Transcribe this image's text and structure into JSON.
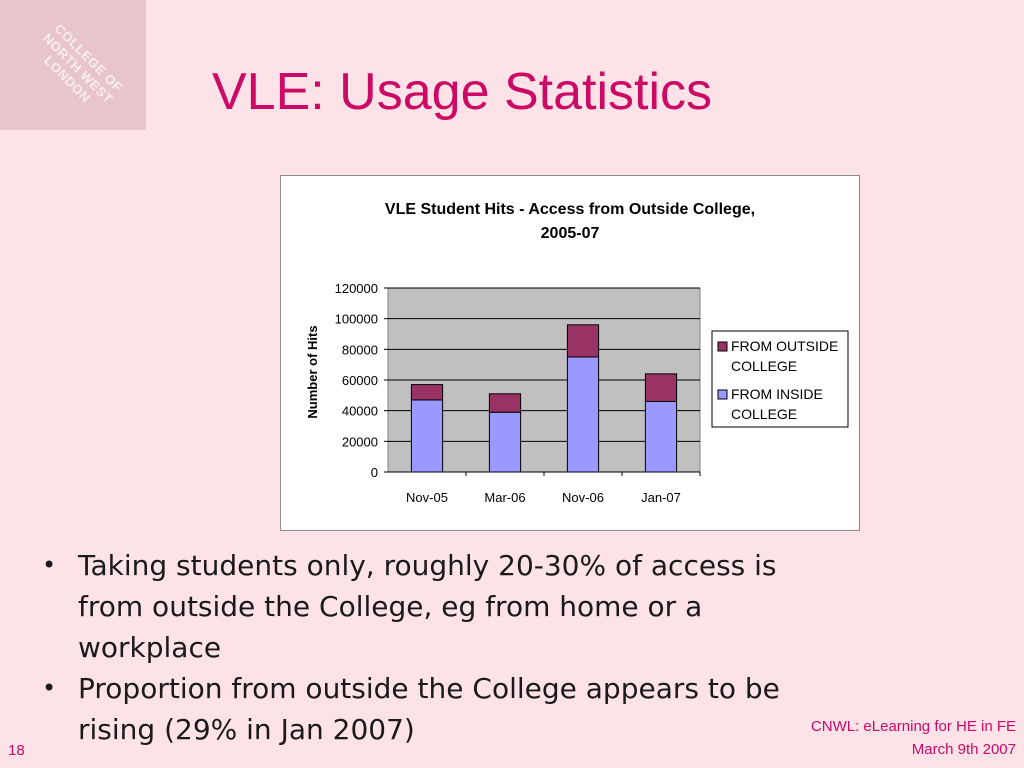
{
  "slide": {
    "title": "VLE: Usage Statistics",
    "logo_lines": [
      "COLLEGE OF",
      "NORTH WEST",
      "LONDON"
    ],
    "page_number": "18",
    "footer_line1": "CNWL: eLearning for HE in FE",
    "footer_line2": "March 9th 2007"
  },
  "bullets": [
    " Taking students only, roughly 20-30% of access is from outside the College, eg from home or a workplace",
    "Proportion  from outside the College appears to be rising (29% in Jan 2007)"
  ],
  "chart_data": {
    "type": "bar",
    "stacked": true,
    "title_lines": [
      "VLE Student Hits - Access from Outside College,",
      "2005-07"
    ],
    "xlabel": "",
    "ylabel": "Number of Hits",
    "ylim": [
      0,
      120000
    ],
    "yticks": [
      "0",
      "20000",
      "40000",
      "60000",
      "80000",
      "100000",
      "120000"
    ],
    "categories": [
      "Nov-05",
      "Mar-06",
      "Nov-06",
      "Jan-07"
    ],
    "series": [
      {
        "name": "FROM  INSIDE COLLEGE",
        "values": [
          47000,
          39000,
          75000,
          46000
        ],
        "color": "#9999ff"
      },
      {
        "name": "FROM OUTSIDE COLLEGE",
        "values": [
          10000,
          12000,
          21000,
          18000
        ],
        "color": "#993366"
      }
    ],
    "legend_lines": [
      [
        "FROM OUTSIDE",
        "COLLEGE"
      ],
      [
        "FROM  INSIDE",
        "COLLEGE"
      ]
    ],
    "plot_background": "#c0c0c0",
    "grid": true,
    "legend_position": "right"
  }
}
